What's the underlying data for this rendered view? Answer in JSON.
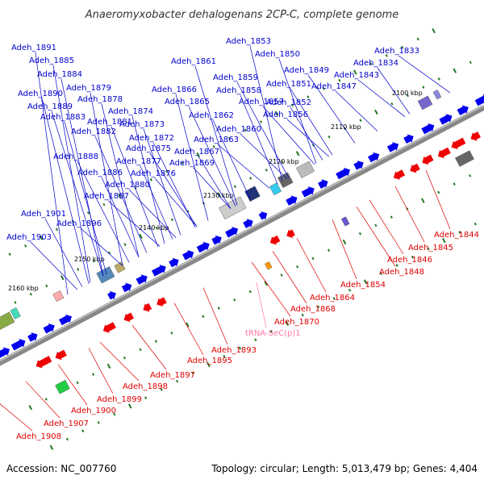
{
  "title": "Anaeromyxobacter dehalogenans 2CP-C, complete genome",
  "footer": {
    "accession": "Accession: NC_007760",
    "topology": "Topology: circular; Length: 5,013,479 bp; Genes: 4,404"
  },
  "colors": {
    "forward_label": "#0000cc",
    "reverse_label": "#dd0000",
    "trna_label": "#ff77aa",
    "forward_gene": "#0000ee",
    "reverse_gene": "#ee0000",
    "backbone": "#888888",
    "tick": "#227722"
  },
  "kbp_ticks": [
    "2100 kbp",
    "2110 kbp",
    "2120 kbp",
    "2130 kbp",
    "2140 kbp",
    "2150 kbp",
    "2160 kbp"
  ],
  "forward_labels": [
    "Adeh_1891",
    "Adeh_1885",
    "Adeh_1884",
    "Adeh_1890",
    "Adeh_1889",
    "Adeh_1879",
    "Adeh_1878",
    "Adeh_1883",
    "Adeh_1881",
    "Adeh_1882",
    "Adeh_1874",
    "Adeh_1873",
    "Adeh_1872",
    "Adeh_1875",
    "Adeh_1888",
    "Adeh_1877",
    "Adeh_1886",
    "Adeh_1876",
    "Adeh_1880",
    "Adeh_1887",
    "Adeh_1853",
    "Adeh_1850",
    "Adeh_1861",
    "Adeh_1849",
    "Adeh_1859",
    "Adeh_1866",
    "Adeh_1858",
    "Adeh_1851",
    "Adeh_1865",
    "Adeh_1857",
    "Adeh_1852",
    "Adeh_1862",
    "Adeh_1856",
    "Adeh_1860",
    "Adeh_1863",
    "Adeh_1867",
    "Adeh_1869",
    "Adeh_1847",
    "Adeh_1843",
    "Adeh_1833",
    "Adeh_1834",
    "Adeh_1901",
    "Adeh_1896",
    "Adeh_1903"
  ],
  "reverse_labels": [
    "Adeh_1844",
    "Adeh_1845",
    "Adeh_1846",
    "Adeh_1848",
    "Adeh_1854",
    "Adeh_1864",
    "Adeh_1868",
    "Adeh_1870",
    "Adeh_1893",
    "Adeh_1895",
    "Adeh_1897",
    "Adeh_1898",
    "Adeh_1899",
    "Adeh_1900",
    "Adeh_1907",
    "Adeh_1908"
  ],
  "trna_label": "tRNA-SeC(p)1"
}
